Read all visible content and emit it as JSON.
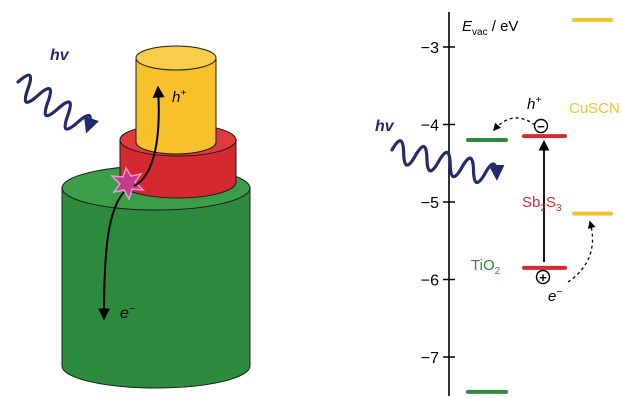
{
  "colors": {
    "navy": "#252a6b",
    "green": "#2e8b3e",
    "green_dark": "#1f6e2c",
    "red": "#d42a2f",
    "red_dark": "#a81e22",
    "yellow": "#f6c12b",
    "yellow_dark": "#d9a514",
    "magenta": "#c83a96",
    "black": "#000000"
  },
  "left_panel": {
    "photon_label": "hv",
    "hole_label": "h",
    "hole_sup": "+",
    "electron_label": "e",
    "electron_sup": "−"
  },
  "right_panel": {
    "axis": {
      "e_letter": "E",
      "e_subscript": "vac",
      "unit": " / eV",
      "ticks": [
        "−3",
        "−4",
        "−5",
        "−6",
        "−7"
      ],
      "tick_values": [
        -3,
        -4,
        -5,
        -6,
        -7
      ]
    },
    "photon_label": "hv",
    "materials": {
      "cuscn": {
        "name": "CuSCN"
      },
      "sb2s3": {
        "name_prefix": "Sb",
        "sub1": "2",
        "name_mid": "S",
        "sub2": "3"
      },
      "tio2": {
        "name_prefix": "TiO",
        "sub": "2"
      }
    },
    "carriers": {
      "hole_label": "h",
      "hole_sup": "+",
      "electron_label": "e",
      "electron_sup": "−",
      "minus_symbol": "−",
      "plus_symbol": "+"
    },
    "levels_ev": {
      "cuscn_top": -2.65,
      "cuscn_mid": -5.15,
      "sb2s3_cb": -4.15,
      "sb2s3_vb": -5.85,
      "tio2_cb": -4.2,
      "tio2_vb": -7.45
    }
  }
}
